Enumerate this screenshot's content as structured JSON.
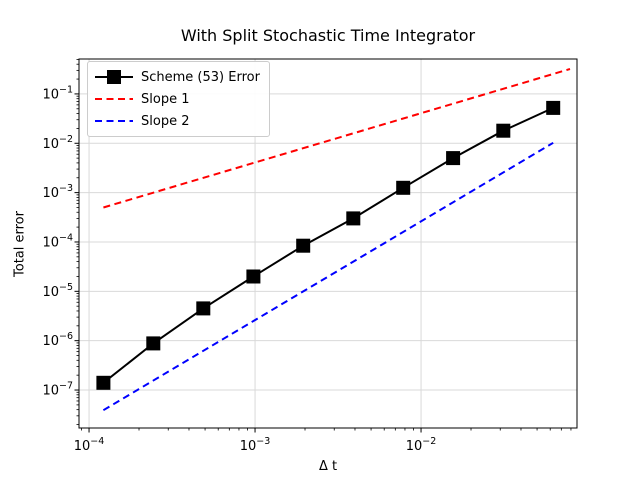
{
  "chart_data": {
    "type": "line",
    "title": "With Split Stochastic Time Integrator",
    "xlabel": "Δ t",
    "ylabel": "Total error",
    "xscale": "log",
    "yscale": "log",
    "xlim": [
      8.7e-05,
      0.087
    ],
    "ylim": [
      1.7e-08,
      0.51
    ],
    "x_major_tick_exponents": [
      -4,
      -3,
      -2
    ],
    "y_major_tick_exponents": [
      -1,
      -2,
      -3,
      -4,
      -5,
      -6,
      -7
    ],
    "grid": true,
    "legend_position": "upper left",
    "colors": {
      "scheme_line": "#000000",
      "slope1_line": "#ff0000",
      "slope2_line": "#0000ff",
      "gridline": "#d9d9d9",
      "spine": "#000000"
    },
    "series": [
      {
        "name": "Scheme (53) Error",
        "color": "#000000",
        "style": "solid",
        "marker": "square",
        "x": [
          0.000122,
          0.000244,
          0.000488,
          0.000977,
          0.00195,
          0.00391,
          0.00781,
          0.0156,
          0.0313,
          0.0625
        ],
        "y": [
          1.4e-07,
          8.8e-07,
          4.5e-06,
          2e-05,
          8.4e-05,
          0.0003,
          0.00125,
          0.005,
          0.018,
          0.052
        ]
      },
      {
        "name": "Slope 1",
        "color": "#ff0000",
        "style": "dashed",
        "marker": "none",
        "x": [
          0.000122,
          0.079
        ],
        "y": [
          0.0005,
          0.32
        ]
      },
      {
        "name": "Slope 2",
        "color": "#0000ff",
        "style": "dashed",
        "marker": "none",
        "x": [
          0.000122,
          0.0625
        ],
        "y": [
          3.9e-08,
          0.0102
        ]
      }
    ]
  }
}
